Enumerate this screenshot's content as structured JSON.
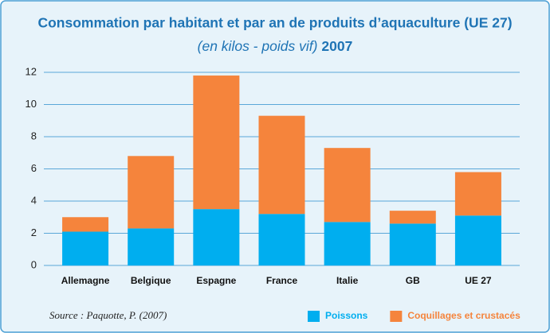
{
  "chart_data": {
    "type": "stacked_bar",
    "title": "Consommation par habitant et par an de produits d’aquaculture (UE 27)",
    "subtitle": "(en kilos - poids vif)",
    "subtitle_year": "2007",
    "source": "Source : Paquotte, P. (2007)",
    "categories": [
      "Allemagne",
      "Belgique",
      "Espagne",
      "France",
      "Italie",
      "GB",
      "UE 27"
    ],
    "series": [
      {
        "name": "Poissons",
        "color": "#00aeef",
        "values": [
          2.1,
          2.3,
          3.5,
          3.2,
          2.7,
          2.6,
          3.1
        ]
      },
      {
        "name": "Coquillages et crustacés",
        "color": "#f5843c",
        "values": [
          0.9,
          4.5,
          8.3,
          6.1,
          4.6,
          0.8,
          2.7
        ]
      }
    ],
    "ylim": [
      0,
      12
    ],
    "yticks": [
      0,
      2,
      4,
      6,
      8,
      10,
      12
    ],
    "grid": true,
    "legend": "bottom-right"
  }
}
